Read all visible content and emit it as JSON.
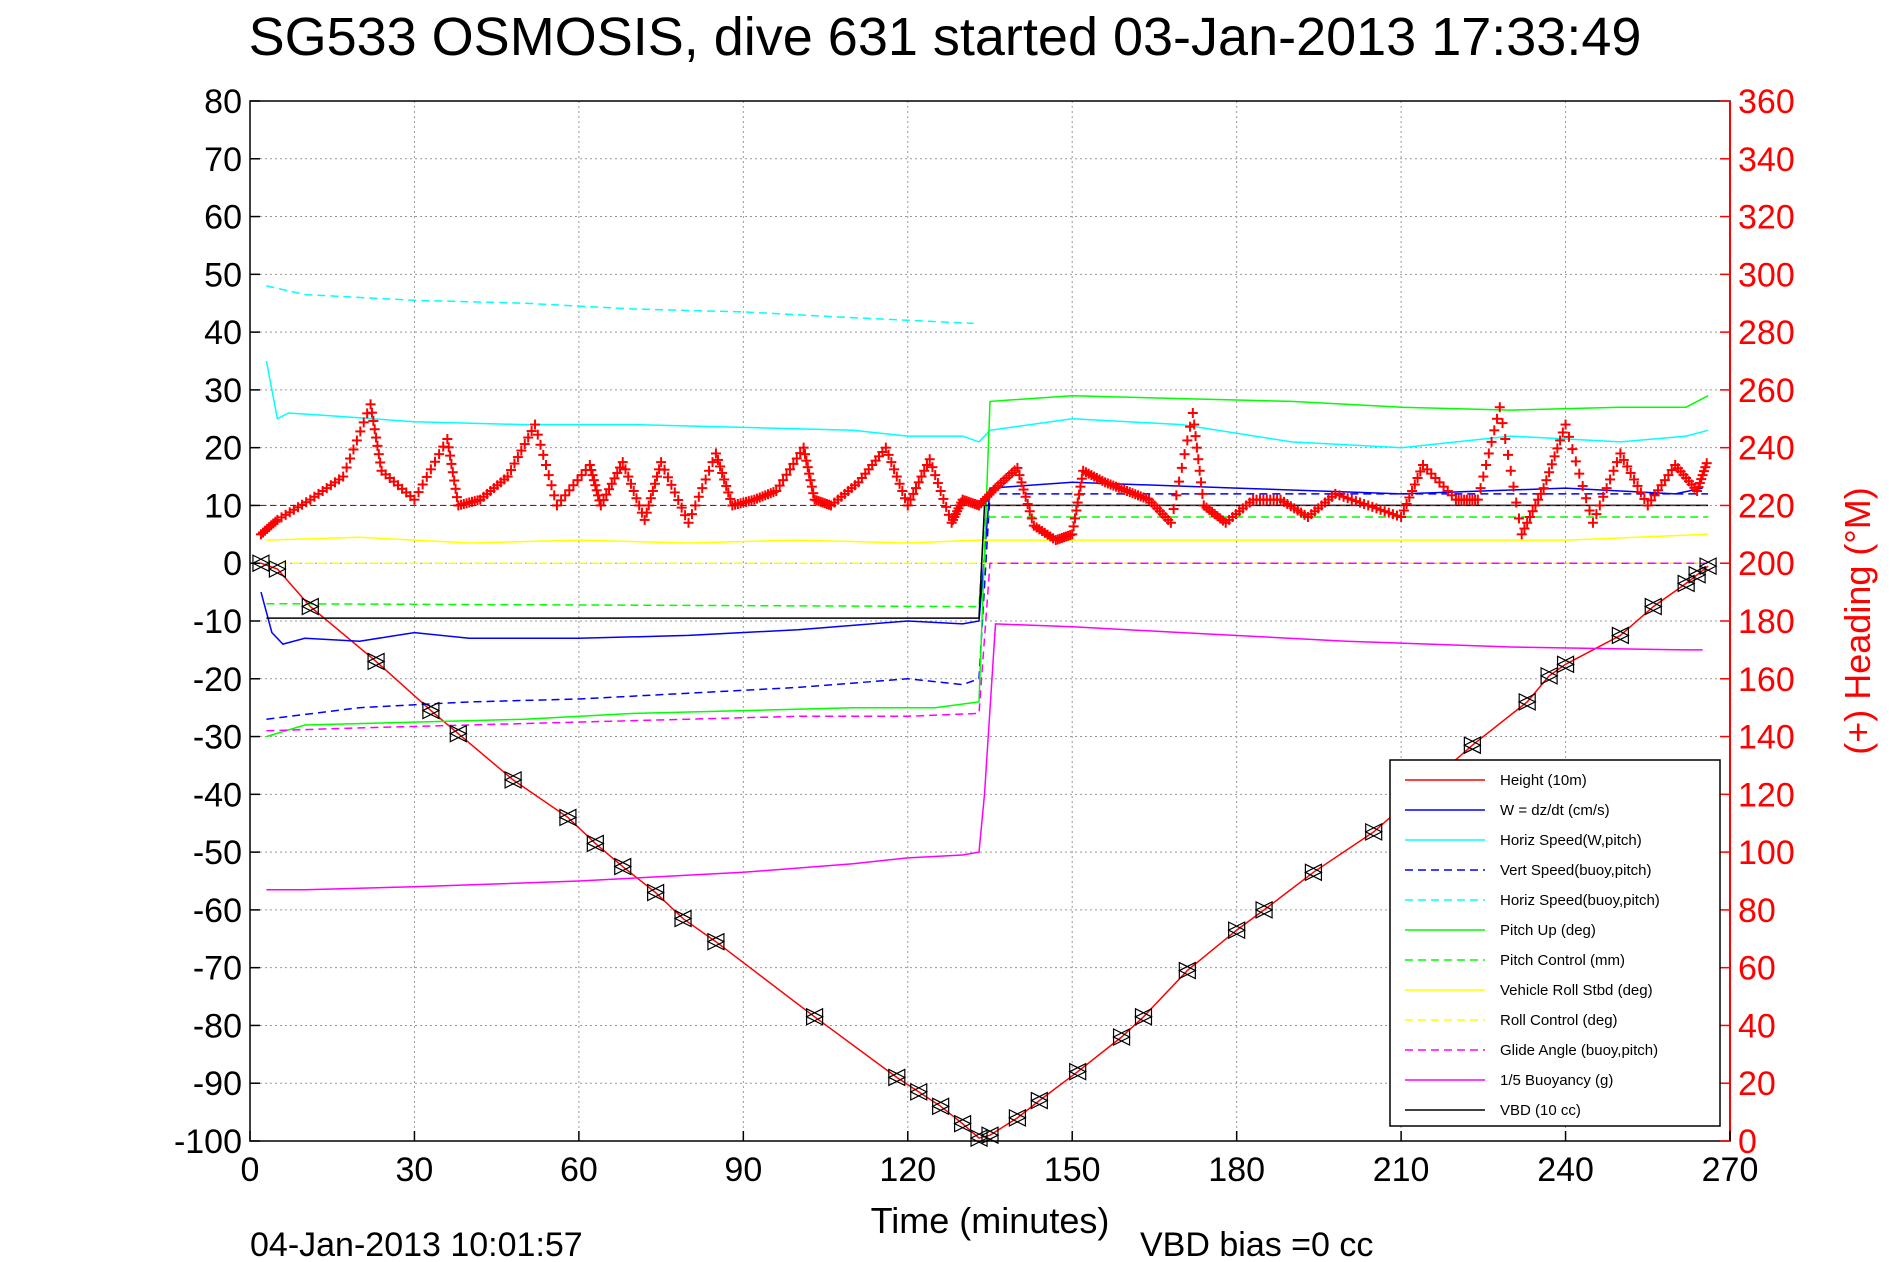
{
  "chart_data": {
    "type": "line",
    "title": "SG533 OSMOSIS, dive 631 started 03-Jan-2013 17:33:49",
    "xlabel": "Time (minutes)",
    "ylabel_right": "(+) Heading (°M)",
    "xlim": [
      0,
      270
    ],
    "ylim": [
      -100,
      80
    ],
    "ylim_right": [
      0,
      360
    ],
    "x_ticks": [
      0,
      30,
      60,
      90,
      120,
      150,
      180,
      210,
      240,
      270
    ],
    "y_ticks": [
      -100,
      -90,
      -80,
      -70,
      -60,
      -50,
      -40,
      -30,
      -20,
      -10,
      0,
      10,
      20,
      30,
      40,
      50,
      60,
      70,
      80
    ],
    "y_ticks_right": [
      0,
      20,
      40,
      60,
      80,
      100,
      120,
      140,
      160,
      180,
      200,
      220,
      240,
      260,
      280,
      300,
      320,
      340,
      360
    ],
    "grid": true,
    "legend_position": "bottom-right",
    "footer_left": "04-Jan-2013 10:01:57",
    "footer_right": "VBD bias =0 cc",
    "colors": {
      "height": "#ff0000",
      "w": "#0000ff",
      "horiz_speed": "#00ffff",
      "vert_speed_buoy": "#0000ff",
      "horiz_speed_buoy": "#00ffff",
      "pitch": "#00ff00",
      "pitch_control": "#00ff00",
      "roll": "#ffff00",
      "roll_control": "#ffff00",
      "glide_angle": "#ff00ff",
      "buoyancy": "#ff00ff",
      "vbd": "#000000",
      "heading": "#ff0000"
    },
    "legend": [
      {
        "label": "Height (10m)",
        "color": "#ff0000",
        "style": "solid"
      },
      {
        "label": "W = dz/dt (cm/s)",
        "color": "#0000ff",
        "style": "solid"
      },
      {
        "label": "Horiz Speed(W,pitch)",
        "color": "#00ffff",
        "style": "solid"
      },
      {
        "label": "Vert Speed(buoy,pitch)",
        "color": "#0000ff",
        "style": "dashed"
      },
      {
        "label": "Horiz Speed(buoy,pitch)",
        "color": "#00ffff",
        "style": "dashed"
      },
      {
        "label": "Pitch Up (deg)",
        "color": "#00ff00",
        "style": "solid"
      },
      {
        "label": "Pitch Control (mm)",
        "color": "#00ff00",
        "style": "dashed"
      },
      {
        "label": "Vehicle Roll Stbd (deg)",
        "color": "#ffff00",
        "style": "solid"
      },
      {
        "label": "Roll Control (deg)",
        "color": "#ffff00",
        "style": "dashed"
      },
      {
        "label": "Glide Angle (buoy,pitch)",
        "color": "#ff00ff",
        "style": "dashed"
      },
      {
        "label": "1/5 Buoyancy (g)",
        "color": "#ff00ff",
        "style": "solid"
      },
      {
        "label": "VBD (10 cc)",
        "color": "#000000",
        "style": "solid"
      }
    ],
    "series": [
      {
        "key": "height",
        "x": [
          0,
          2,
          5,
          11,
          23,
          33,
          38,
          48,
          58,
          63,
          68,
          74,
          79,
          85,
          103,
          118,
          122,
          126,
          130,
          133,
          135,
          140,
          144,
          151,
          159,
          163,
          171,
          180,
          185,
          194,
          205,
          223,
          233,
          237,
          240,
          250,
          256,
          262,
          264,
          266
        ],
        "y": [
          0,
          0,
          -1,
          -7.5,
          -17,
          -25.5,
          -29.5,
          -37.5,
          -44,
          -48.5,
          -52.5,
          -57,
          -61.5,
          -65.5,
          -78.5,
          -89,
          -91.5,
          -94,
          -97,
          -99.5,
          -99,
          -96,
          -93,
          -88,
          -82,
          -78.5,
          -70.5,
          -63.5,
          -60,
          -53.5,
          -46.5,
          -31.5,
          -24,
          -19.5,
          -17.5,
          -12.5,
          -7.5,
          -3.5,
          -2,
          -0.5
        ]
      },
      {
        "key": "w",
        "x": [
          2,
          4,
          6,
          10,
          20,
          30,
          40,
          60,
          80,
          100,
          120,
          130,
          133,
          135,
          150,
          180,
          210,
          240,
          260,
          265
        ],
        "y": [
          -5,
          -12,
          -14,
          -13,
          -13.5,
          -12,
          -13,
          -13,
          -12.5,
          -11.5,
          -10,
          -10.5,
          -10,
          13,
          14,
          13,
          12,
          13,
          12,
          13
        ]
      },
      {
        "key": "horiz_speed",
        "x": [
          3,
          5,
          7,
          15,
          30,
          50,
          70,
          90,
          110,
          120,
          130,
          133,
          135,
          150,
          170,
          190,
          210,
          230,
          250,
          262,
          266
        ],
        "y": [
          35,
          25,
          26,
          25.5,
          24.5,
          24,
          24,
          23.5,
          23,
          22,
          22,
          21,
          23,
          25,
          24,
          21,
          20,
          22,
          21,
          22,
          23
        ]
      },
      {
        "key": "vert_speed_buoy",
        "x": [
          3,
          20,
          40,
          60,
          80,
          100,
          120,
          130,
          133,
          135,
          150,
          200,
          250,
          266
        ],
        "y": [
          -27,
          -25,
          -24,
          -23.5,
          -22.5,
          -21.5,
          -20,
          -21,
          -20,
          12,
          12,
          12,
          12,
          12
        ]
      },
      {
        "key": "horiz_speed_buoy",
        "x": [
          3,
          10,
          30,
          50,
          70,
          90,
          110,
          132
        ],
        "y": [
          48,
          46.5,
          45.5,
          45,
          44,
          43.5,
          42.5,
          41.5
        ]
      },
      {
        "key": "pitch",
        "x": [
          3,
          10,
          30,
          50,
          70,
          90,
          110,
          125,
          133,
          135,
          150,
          170,
          190,
          210,
          230,
          250,
          262,
          266
        ],
        "y": [
          -30,
          -28,
          -27.5,
          -27,
          -26,
          -25.5,
          -25,
          -25,
          -24,
          28,
          29,
          28.5,
          28,
          27,
          26.5,
          27,
          27,
          29
        ]
      },
      {
        "key": "pitch_control",
        "x": [
          3,
          133,
          134,
          266
        ],
        "y": [
          -7,
          -7.5,
          8,
          8
        ]
      },
      {
        "key": "roll",
        "x": [
          3,
          20,
          40,
          60,
          80,
          100,
          120,
          133,
          135,
          160,
          180,
          200,
          220,
          240,
          266
        ],
        "y": [
          4,
          4.5,
          3.5,
          4,
          3.5,
          4,
          3.5,
          4,
          4,
          4,
          4,
          4,
          4,
          4,
          5
        ]
      },
      {
        "key": "roll_control",
        "x": [
          3,
          266
        ],
        "y": [
          0,
          0
        ]
      },
      {
        "key": "glide_angle",
        "x": [
          3,
          20,
          40,
          60,
          80,
          100,
          120,
          133,
          135,
          200,
          266
        ],
        "y": [
          -29,
          -28.5,
          -28,
          -27.5,
          -27,
          -26.5,
          -26.5,
          -26,
          0,
          0,
          0
        ]
      },
      {
        "key": "buoyancy",
        "x": [
          3,
          10,
          30,
          60,
          90,
          110,
          120,
          130,
          133,
          134,
          136,
          150,
          170,
          200,
          230,
          262,
          265
        ],
        "y": [
          -56.5,
          -56.5,
          -56,
          -55,
          -53.5,
          -52,
          -51,
          -50.5,
          -50,
          -40,
          -10.5,
          -11,
          -12,
          -13.5,
          -14.5,
          -15,
          -15
        ]
      },
      {
        "key": "vbd",
        "x": [
          3,
          133,
          134,
          266
        ],
        "y": [
          -9.5,
          -9.5,
          10,
          10
        ]
      }
    ],
    "markers": {
      "x": [
        2,
        5,
        11,
        23,
        33,
        38,
        48,
        58,
        63,
        68,
        74,
        79,
        85,
        103,
        118,
        122,
        126,
        130,
        133,
        135,
        140,
        144,
        151,
        159,
        163,
        171,
        180,
        185,
        194,
        205,
        223,
        233,
        237,
        240,
        250,
        256,
        262,
        264,
        266
      ],
      "y": [
        0,
        -1,
        -7.5,
        -17,
        -25.5,
        -29.5,
        -37.5,
        -44,
        -48.5,
        -52.5,
        -57,
        -61.5,
        -65.5,
        -78.5,
        -89,
        -91.5,
        -94,
        -97,
        -99.5,
        -99,
        -96,
        -93,
        -88,
        -82,
        -78.5,
        -70.5,
        -63.5,
        -60,
        -53.5,
        -46.5,
        -31.5,
        -24,
        -19.5,
        -17.5,
        -12.5,
        -7.5,
        -3.5,
        -2,
        -0.5
      ]
    },
    "heading": {
      "x": [
        2,
        5,
        11,
        17,
        22,
        24,
        30,
        36,
        38,
        42,
        47,
        52,
        56,
        62,
        64,
        68,
        72,
        75,
        80,
        85,
        88,
        92,
        96,
        101,
        103,
        106,
        111,
        116,
        120,
        124,
        128,
        130,
        133,
        136,
        140,
        143,
        147,
        150,
        152,
        156,
        160,
        164,
        168,
        172,
        174,
        178,
        183,
        188,
        193,
        198,
        204,
        210,
        214,
        220,
        224,
        228,
        232,
        236,
        240,
        245,
        250,
        255,
        260,
        264,
        266
      ],
      "y": [
        210,
        215,
        222,
        230,
        255,
        232,
        222,
        243,
        220,
        222,
        230,
        248,
        220,
        234,
        220,
        235,
        215,
        235,
        214,
        238,
        220,
        222,
        225,
        240,
        222,
        220,
        228,
        240,
        220,
        236,
        214,
        222,
        220,
        226,
        233,
        213,
        208,
        210,
        232,
        228,
        225,
        222,
        214,
        252,
        220,
        214,
        222,
        222,
        216,
        224,
        220,
        216,
        234,
        222,
        222,
        254,
        210,
        226,
        248,
        214,
        238,
        220,
        234,
        225,
        236
      ]
    }
  }
}
